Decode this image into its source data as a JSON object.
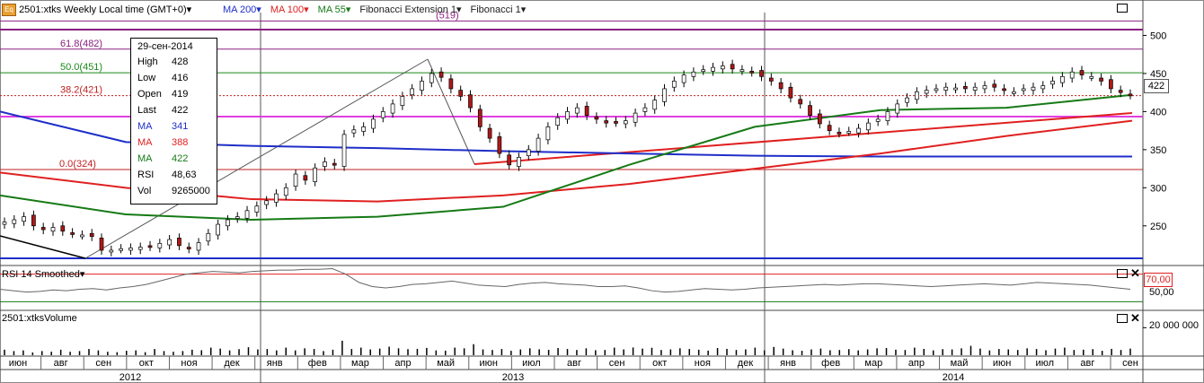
{
  "header": {
    "app_icon_text": "Eq",
    "symbol_title": "2501:xtks Weekly Local time (GMT+0)",
    "menu_arrow": "▾",
    "legend": [
      {
        "label": "MA 200",
        "color": "#1e2ec8"
      },
      {
        "label": "MA 100",
        "color": "#e02020"
      },
      {
        "label": "MA 55",
        "color": "#157a15"
      },
      {
        "label": "Fibonacci Extension 1",
        "color": "#202020"
      },
      {
        "label": "Fibonacci 1",
        "color": "#202020"
      }
    ]
  },
  "infobox": {
    "date": "29-сен-2014",
    "rows": [
      {
        "k": "High",
        "v": "428",
        "color": "#000000"
      },
      {
        "k": "Low",
        "v": "416",
        "color": "#000000"
      },
      {
        "k": "Open",
        "v": "419",
        "color": "#000000"
      },
      {
        "k": "Last",
        "v": "422",
        "color": "#000000"
      },
      {
        "k": "MA",
        "v": "341",
        "color": "#1e2ec8"
      },
      {
        "k": "MA",
        "v": "388",
        "color": "#e02020"
      },
      {
        "k": "MA",
        "v": "422",
        "color": "#157a15"
      },
      {
        "k": "RSI",
        "v": "48,63",
        "color": "#000000"
      },
      {
        "k": "Vol",
        "v": "9265000",
        "color": "#000000"
      }
    ]
  },
  "price_label": "422",
  "rsi_panel": {
    "title": "RSI 14 Smoothed",
    "level_label": "70,00",
    "tick_label": "50,00"
  },
  "volume_panel": {
    "title": "2501:xtksVolume",
    "tick_label": "20 000 000"
  },
  "chart_data": [
    {
      "type": "candlestick",
      "title": "2501:xtks Weekly Local time (GMT+0)",
      "y_ticks": [
        "250",
        "300",
        "350",
        "400",
        "450",
        "500"
      ],
      "ylim": [
        205,
        530
      ],
      "x_month_labels": [
        "июн",
        "авг",
        "сен",
        "окт",
        "ноя",
        "дек",
        "янв",
        "фев",
        "мар",
        "апр",
        "май",
        "июн",
        "июл",
        "авг",
        "сен",
        "окт",
        "ноя",
        "дек",
        "янв",
        "фев",
        "мар",
        "апр",
        "май",
        "июн",
        "июл",
        "авг",
        "сен"
      ],
      "x_year_labels": [
        "2012",
        "2013",
        "2014"
      ],
      "close": [
        255,
        258,
        262,
        250,
        245,
        248,
        243,
        240,
        238,
        236,
        218,
        218,
        220,
        221,
        222,
        223,
        227,
        232,
        224,
        220,
        228,
        240,
        252,
        258,
        262,
        270,
        276,
        283,
        292,
        300,
        318,
        310,
        326,
        334,
        330,
        370,
        376,
        380,
        390,
        400,
        410,
        420,
        430,
        440,
        450,
        445,
        430,
        420,
        405,
        380,
        365,
        345,
        330,
        340,
        350,
        365,
        380,
        392,
        400,
        405,
        395,
        390,
        385,
        386,
        388,
        398,
        405,
        415,
        430,
        440,
        448,
        452,
        455,
        458,
        460,
        456,
        455,
        452,
        446,
        440,
        430,
        418,
        410,
        395,
        384,
        375,
        372,
        374,
        378,
        385,
        390,
        400,
        410,
        418,
        426,
        428,
        430,
        432,
        431,
        430,
        432,
        434,
        432,
        428,
        426,
        430,
        432,
        434,
        440,
        446,
        452,
        448,
        446,
        440,
        430,
        425,
        422
      ],
      "fib_levels": [
        {
          "label": "0.0(324)",
          "value": 324
        },
        {
          "label": "38.2(421)",
          "value": 421
        },
        {
          "label": "50.0(451)",
          "value": 451
        },
        {
          "label": "61.8(482)",
          "value": 482
        },
        {
          "label": "(519)",
          "value": 519
        }
      ],
      "series": [
        {
          "name": "MA 200",
          "color": "#1e2ec8",
          "values": [
            400,
            360,
            355,
            352,
            348,
            345,
            342,
            341,
            341,
            341
          ]
        },
        {
          "name": "MA 100",
          "color": "#e02020",
          "values": [
            320,
            300,
            285,
            282,
            290,
            305,
            325,
            345,
            368,
            388
          ]
        },
        {
          "name": "MA 55",
          "color": "#157a15",
          "values": [
            290,
            265,
            258,
            262,
            275,
            330,
            380,
            402,
            405,
            422
          ]
        }
      ],
      "last": 422
    },
    {
      "type": "line",
      "title": "RSI 14 Smoothed",
      "ylim": [
        20,
        80
      ],
      "reference_level": 70,
      "values": [
        48,
        46,
        44,
        45,
        47,
        46,
        48,
        49,
        47,
        50,
        52,
        55,
        60,
        65,
        70,
        72,
        74,
        73,
        72,
        74,
        75,
        76,
        76,
        77,
        77,
        78,
        70,
        58,
        52,
        50,
        52,
        55,
        56,
        58,
        60,
        57,
        54,
        53,
        52,
        55,
        57,
        58,
        56,
        55,
        54,
        52,
        52,
        53,
        50,
        46,
        44,
        45,
        47,
        49,
        48,
        47,
        48,
        50,
        51,
        52,
        53,
        54,
        55,
        54,
        55,
        56,
        56,
        55,
        54,
        53,
        52,
        53,
        54,
        55,
        56,
        55,
        54,
        56,
        58,
        57,
        56,
        55,
        54,
        52,
        50,
        48
      ]
    },
    {
      "type": "bar",
      "title": "2501:xtksVolume",
      "ylim": [
        0,
        30000000
      ],
      "tick_value": 20000000,
      "values": [
        4,
        3,
        3.5,
        2,
        3,
        2.5,
        4,
        2.5,
        3,
        4.5,
        3.5,
        2.5,
        2.2,
        3.2,
        3.5,
        2.2,
        4.5,
        3,
        2.5,
        3,
        4,
        3.6,
        5.5,
        4.8,
        3.5,
        4.4,
        5.8,
        4.2,
        4.5,
        3.5,
        5.5,
        3.5,
        5,
        4.5,
        3,
        4,
        10.5,
        4.5,
        5.5,
        4.2,
        4.8,
        6.2,
        5,
        4.4,
        4.6,
        5.3,
        3.5,
        3.3,
        5.5,
        5,
        8,
        4.2,
        3.8,
        4.5,
        3.2,
        4.2,
        5,
        4.3,
        3.9,
        5.2,
        4.5,
        3.8,
        5,
        3.6,
        3.8,
        5.5,
        4.2,
        5.6,
        4.8,
        5.4,
        3.8,
        4.2,
        5,
        4.5,
        4,
        3.3,
        5.2,
        4.6,
        3.8,
        4.2,
        5.5,
        3.5,
        6,
        4.8,
        3.6,
        3.2,
        4.2,
        4.8,
        3.6,
        3.8,
        4.4,
        3.5,
        4.2,
        5,
        5.2,
        4,
        3.8,
        5.5,
        4.6,
        3.5,
        4.4,
        4.2,
        5,
        6.8,
        4.8,
        3.5,
        4.5,
        4.2,
        3.8,
        5,
        4.5,
        3.6,
        4.8,
        5.5,
        3.8,
        4,
        4.4,
        3.2,
        4.6,
        3.8,
        4.8
      ]
    }
  ]
}
